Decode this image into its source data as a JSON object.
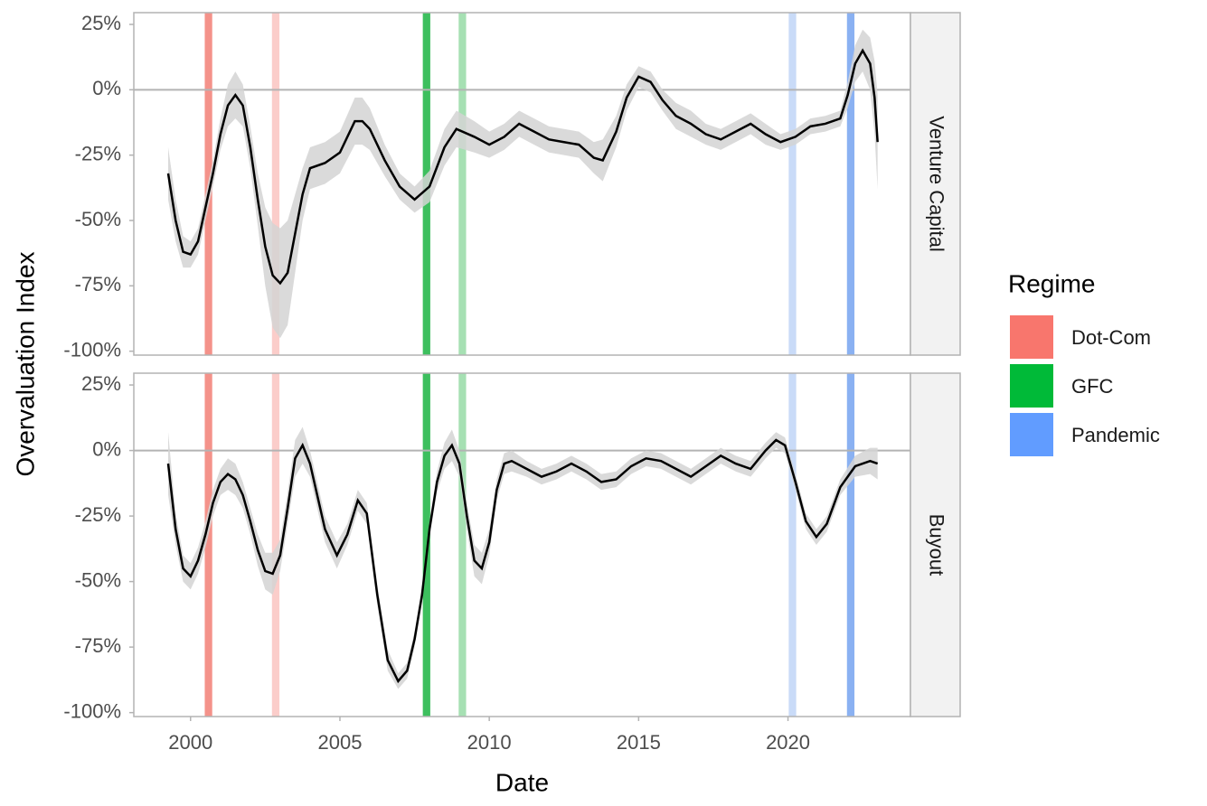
{
  "chart_data": [
    {
      "type": "line",
      "facet": "Venture Capital",
      "ylabel": "Overvaluation Index",
      "legend": {
        "title": "Regime",
        "entries": [
          {
            "name": "Dot-Com",
            "color": "#f8766d"
          },
          {
            "name": "GFC",
            "color": "#00ba38"
          },
          {
            "name": "Pandemic",
            "color": "#619cff"
          }
        ]
      },
      "regimes": [
        {
          "x": 2000.6,
          "color": "#f4928a"
        },
        {
          "x": 2002.85,
          "color": "#fbcdca"
        },
        {
          "x": 2007.9,
          "color": "#3dbf5e"
        },
        {
          "x": 2009.1,
          "color": "#a6e0b3"
        },
        {
          "x": 2020.15,
          "color": "#c9dbf8"
        },
        {
          "x": 2022.1,
          "color": "#8ab1f2"
        }
      ],
      "xlim": [
        1998.1,
        2024.1
      ],
      "ylim": [
        -101.5,
        29.5
      ],
      "yticks": [
        {
          "value": -100,
          "label": "-100%"
        },
        {
          "value": -75,
          "label": "-75%"
        },
        {
          "value": -50,
          "label": "-50%"
        },
        {
          "value": -25,
          "label": "-25%"
        },
        {
          "value": 0,
          "label": "0%"
        },
        {
          "value": 25,
          "label": "25%"
        }
      ],
      "x": [
        1999.25,
        1999.5,
        1999.75,
        2000,
        2000.25,
        2000.5,
        2000.75,
        2001,
        2001.25,
        2001.5,
        2001.75,
        2002,
        2002.25,
        2002.5,
        2002.75,
        2003,
        2003.25,
        2003.5,
        2003.75,
        2004,
        2004.5,
        2005,
        2005.5,
        2005.75,
        2006,
        2006.5,
        2007,
        2007.5,
        2008,
        2008.5,
        2008.9,
        2009.5,
        2010,
        2010.5,
        2011,
        2011.5,
        2012,
        2012.5,
        2013,
        2013.5,
        2013.8,
        2014.25,
        2014.6,
        2015,
        2015.4,
        2015.8,
        2016.25,
        2016.75,
        2017.25,
        2017.75,
        2018.25,
        2018.75,
        2019.25,
        2019.75,
        2020.25,
        2020.75,
        2021.25,
        2021.75,
        2022,
        2022.25,
        2022.5,
        2022.75,
        2022.9,
        2023
      ],
      "series": [
        {
          "color": "#000000",
          "band_color": "#d3d3d3",
          "values": [
            -32,
            -50,
            -62,
            -63,
            -58,
            -45,
            -32,
            -17,
            -6,
            -2,
            -6,
            -22,
            -42,
            -60,
            -71,
            -74,
            -70,
            -55,
            -40,
            -30,
            -28,
            -24,
            -12,
            -12,
            -15,
            -27,
            -37,
            -42,
            -37,
            -22,
            -15,
            -18,
            -21,
            -18,
            -13,
            -16,
            -19,
            -20,
            -21,
            -26,
            -27,
            -16,
            -3,
            5,
            3,
            -4,
            -10,
            -13,
            -17,
            -19,
            -16,
            -13,
            -17,
            -20,
            -18,
            -14,
            -13,
            -11,
            -2,
            10,
            15,
            10,
            -3,
            -20
          ],
          "errors": [
            10,
            8,
            6,
            5,
            5,
            5,
            5,
            6,
            8,
            9,
            8,
            8,
            10,
            15,
            20,
            21,
            20,
            15,
            10,
            8,
            8,
            8,
            9,
            9,
            8,
            6,
            5,
            5,
            6,
            7,
            7,
            6,
            5,
            5,
            5,
            5,
            5,
            5,
            5,
            6,
            8,
            6,
            5,
            4,
            4,
            4,
            5,
            5,
            4,
            4,
            4,
            4,
            4,
            3,
            3,
            3,
            3,
            3,
            5,
            7,
            8,
            10,
            14,
            18
          ]
        }
      ]
    },
    {
      "type": "line",
      "facet": "Buyout",
      "xlabel": "Date",
      "xlim": [
        1998.1,
        2024.1
      ],
      "ylim": [
        -101.5,
        29.5
      ],
      "xticks": [
        2000,
        2005,
        2010,
        2015,
        2020
      ],
      "yticks": [
        {
          "value": -100,
          "label": "-100%"
        },
        {
          "value": -75,
          "label": "-75%"
        },
        {
          "value": -50,
          "label": "-50%"
        },
        {
          "value": -25,
          "label": "-25%"
        },
        {
          "value": 0,
          "label": "0%"
        },
        {
          "value": 25,
          "label": "25%"
        }
      ],
      "x": [
        1999.25,
        1999.5,
        1999.75,
        2000,
        2000.25,
        2000.5,
        2000.75,
        2001,
        2001.25,
        2001.5,
        2001.75,
        2002,
        2002.25,
        2002.5,
        2002.75,
        2003,
        2003.25,
        2003.5,
        2003.75,
        2004,
        2004.5,
        2004.9,
        2005.25,
        2005.6,
        2005.9,
        2006.25,
        2006.6,
        2006.95,
        2007.25,
        2007.5,
        2007.75,
        2008,
        2008.25,
        2008.5,
        2008.75,
        2009,
        2009.25,
        2009.5,
        2009.75,
        2010,
        2010.25,
        2010.5,
        2010.75,
        2011.25,
        2011.75,
        2012.25,
        2012.75,
        2013.25,
        2013.75,
        2014.25,
        2014.75,
        2015.25,
        2015.75,
        2016.25,
        2016.75,
        2017.25,
        2017.75,
        2018.25,
        2018.75,
        2019.25,
        2019.6,
        2019.9,
        2020.25,
        2020.6,
        2020.95,
        2021.3,
        2021.75,
        2022.25,
        2022.75,
        2023
      ],
      "series": [
        {
          "color": "#000000",
          "band_color": "#d3d3d3",
          "values": [
            -5,
            -30,
            -45,
            -48,
            -42,
            -32,
            -20,
            -12,
            -9,
            -11,
            -17,
            -27,
            -38,
            -46,
            -47,
            -40,
            -22,
            -3,
            2,
            -5,
            -30,
            -40,
            -32,
            -19,
            -24,
            -55,
            -80,
            -88,
            -84,
            -72,
            -55,
            -30,
            -12,
            -2,
            2,
            -5,
            -25,
            -42,
            -45,
            -35,
            -15,
            -5,
            -4,
            -7,
            -10,
            -8,
            -5,
            -8,
            -12,
            -11,
            -6,
            -3,
            -4,
            -7,
            -10,
            -6,
            -2,
            -5,
            -7,
            0,
            4,
            2,
            -12,
            -27,
            -33,
            -28,
            -14,
            -6,
            -4,
            -5
          ],
          "errors": [
            12,
            6,
            5,
            5,
            5,
            5,
            5,
            5,
            6,
            6,
            5,
            5,
            6,
            7,
            8,
            6,
            6,
            7,
            7,
            5,
            5,
            5,
            4,
            4,
            4,
            4,
            4,
            3,
            3,
            3,
            3,
            3,
            4,
            5,
            6,
            5,
            5,
            6,
            6,
            5,
            4,
            4,
            4,
            3,
            3,
            3,
            3,
            3,
            3,
            3,
            3,
            3,
            3,
            3,
            3,
            3,
            3,
            3,
            3,
            3,
            3,
            3,
            3,
            3,
            3,
            3,
            3,
            4,
            5,
            6
          ]
        }
      ]
    }
  ]
}
